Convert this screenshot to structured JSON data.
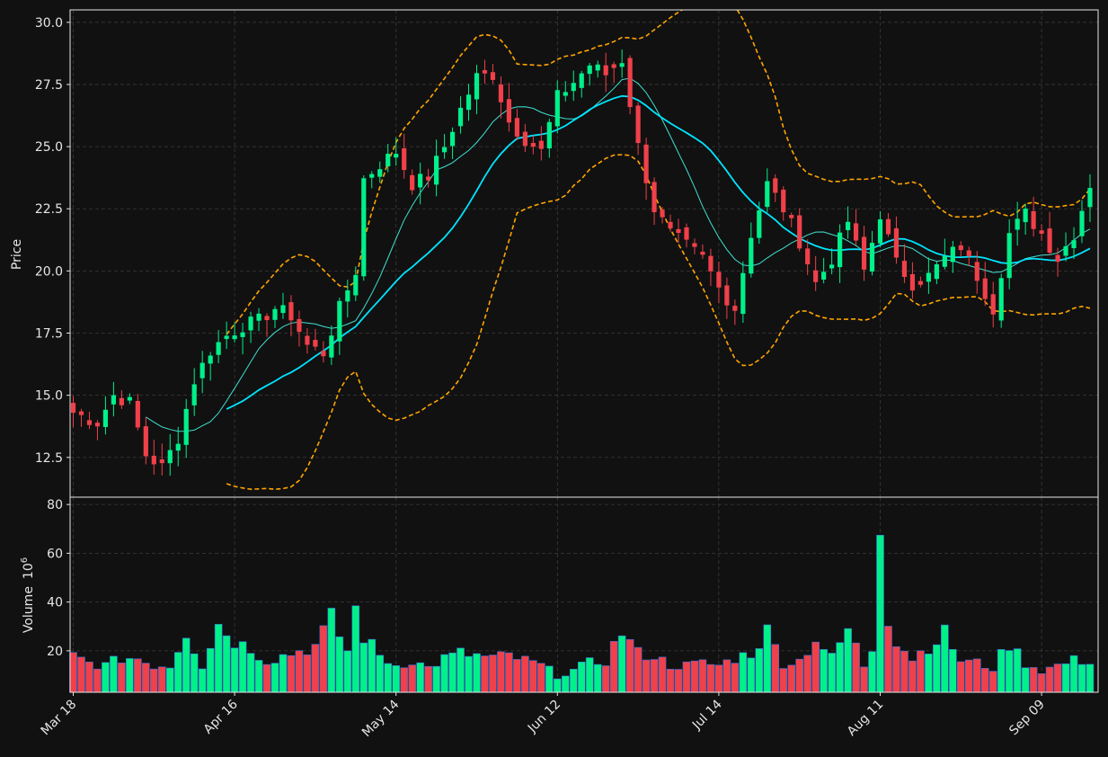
{
  "chart_data": {
    "type": "candlestick",
    "x_tick_labels": [
      {
        "label": "Mar 18",
        "index": 0
      },
      {
        "label": "Apr 16",
        "index": 20
      },
      {
        "label": "May 14",
        "index": 40
      },
      {
        "label": "Jun 12",
        "index": 60
      },
      {
        "label": "Jul 14",
        "index": 80
      },
      {
        "label": "Aug 11",
        "index": 100
      },
      {
        "label": "Sep 09",
        "index": 120
      }
    ],
    "price_panel": {
      "ylabel": "Price",
      "ylim": [
        10.9,
        30.5
      ],
      "yticks": [
        12.5,
        15.0,
        17.5,
        20.0,
        22.5,
        25.0,
        27.5,
        30.0
      ],
      "grid": true
    },
    "volume_panel": {
      "ylabel": "Volume",
      "ylabel_exponent": "10",
      "ylabel_exponent_power": "6",
      "ylim": [
        3,
        83
      ],
      "yticks": [
        20,
        40,
        60,
        80
      ],
      "grid": true
    },
    "colors": {
      "up": "#00f08a",
      "down": "#f0404a",
      "ma_fast": "#40e0d0",
      "ma_slow": "#00e5ff",
      "bands": "#ffa500",
      "background": "#111111",
      "grid": "#3a3a3a",
      "spine": "#e6e6e6"
    },
    "anchors": [
      [
        0,
        14.3
      ],
      [
        3,
        13.9
      ],
      [
        5,
        15.0
      ],
      [
        7,
        14.7
      ],
      [
        9,
        12.6
      ],
      [
        11,
        12.1
      ],
      [
        13,
        13.3
      ],
      [
        15,
        15.6
      ],
      [
        17,
        16.8
      ],
      [
        19,
        17.4
      ],
      [
        21,
        17.8
      ],
      [
        23,
        18.0
      ],
      [
        25,
        18.5
      ],
      [
        27,
        18.2
      ],
      [
        29,
        17.0
      ],
      [
        31,
        16.7
      ],
      [
        33,
        18.5
      ],
      [
        35,
        20.0
      ],
      [
        36,
        23.7
      ],
      [
        38,
        24.3
      ],
      [
        40,
        24.8
      ],
      [
        42,
        23.5
      ],
      [
        44,
        23.8
      ],
      [
        46,
        25.0
      ],
      [
        48,
        26.5
      ],
      [
        50,
        27.8
      ],
      [
        52,
        27.9
      ],
      [
        54,
        26.0
      ],
      [
        56,
        25.3
      ],
      [
        58,
        24.8
      ],
      [
        60,
        27.0
      ],
      [
        62,
        27.6
      ],
      [
        64,
        28.3
      ],
      [
        66,
        27.9
      ],
      [
        68,
        28.5
      ],
      [
        70,
        25.0
      ],
      [
        72,
        22.5
      ],
      [
        74,
        21.5
      ],
      [
        76,
        21.0
      ],
      [
        78,
        20.5
      ],
      [
        80,
        19.3
      ],
      [
        82,
        18.5
      ],
      [
        84,
        21.5
      ],
      [
        86,
        23.5
      ],
      [
        88,
        22.5
      ],
      [
        90,
        21.2
      ],
      [
        92,
        19.5
      ],
      [
        94,
        20.5
      ],
      [
        96,
        22.0
      ],
      [
        98,
        20.0
      ],
      [
        100,
        22.3
      ],
      [
        102,
        20.3
      ],
      [
        104,
        19.5
      ],
      [
        106,
        19.8
      ],
      [
        108,
        20.5
      ],
      [
        110,
        21.0
      ],
      [
        112,
        19.8
      ],
      [
        114,
        18.5
      ],
      [
        116,
        21.5
      ],
      [
        118,
        22.3
      ],
      [
        120,
        21.5
      ],
      [
        122,
        20.5
      ],
      [
        124,
        21.5
      ],
      [
        126,
        23.5
      ]
    ],
    "volume_anchors": [
      [
        0,
        18
      ],
      [
        2,
        15
      ],
      [
        4,
        14
      ],
      [
        6,
        17
      ],
      [
        8,
        17
      ],
      [
        10,
        14
      ],
      [
        12,
        14
      ],
      [
        14,
        28
      ],
      [
        16,
        14
      ],
      [
        18,
        31
      ],
      [
        20,
        24
      ],
      [
        22,
        21
      ],
      [
        24,
        16
      ],
      [
        26,
        18
      ],
      [
        28,
        20
      ],
      [
        30,
        22
      ],
      [
        32,
        33
      ],
      [
        34,
        20
      ],
      [
        35,
        37
      ],
      [
        36,
        26
      ],
      [
        38,
        18
      ],
      [
        40,
        14
      ],
      [
        42,
        16
      ],
      [
        44,
        13
      ],
      [
        46,
        17
      ],
      [
        48,
        19
      ],
      [
        50,
        18
      ],
      [
        52,
        17
      ],
      [
        54,
        18
      ],
      [
        56,
        16
      ],
      [
        58,
        14
      ],
      [
        60,
        10
      ],
      [
        62,
        12
      ],
      [
        64,
        15
      ],
      [
        66,
        16
      ],
      [
        68,
        28
      ],
      [
        70,
        19
      ],
      [
        72,
        18
      ],
      [
        74,
        14
      ],
      [
        76,
        14
      ],
      [
        78,
        15
      ],
      [
        80,
        14
      ],
      [
        82,
        17
      ],
      [
        84,
        19
      ],
      [
        86,
        28
      ],
      [
        88,
        15
      ],
      [
        90,
        16
      ],
      [
        92,
        25
      ],
      [
        94,
        17
      ],
      [
        96,
        29
      ],
      [
        98,
        14
      ],
      [
        99,
        21
      ],
      [
        100,
        76
      ],
      [
        101,
        34
      ],
      [
        102,
        24
      ],
      [
        104,
        17
      ],
      [
        106,
        22
      ],
      [
        108,
        27
      ],
      [
        110,
        16
      ],
      [
        112,
        15
      ],
      [
        114,
        13
      ],
      [
        116,
        23
      ],
      [
        118,
        15
      ],
      [
        120,
        12
      ],
      [
        122,
        14
      ],
      [
        124,
        16
      ],
      [
        126,
        16
      ]
    ]
  }
}
